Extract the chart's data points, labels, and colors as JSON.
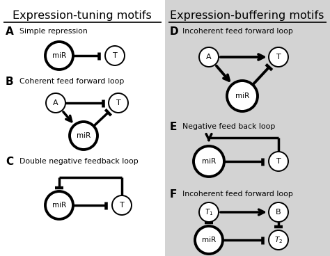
{
  "title_left": "Expression-tuning motifs",
  "title_right": "Expression-buffering motifs",
  "bg_right": "#d3d3d3",
  "panels": {
    "A": {
      "label": "A",
      "desc": "Simple repression"
    },
    "B": {
      "label": "B",
      "desc": "Coherent feed forward loop"
    },
    "C": {
      "label": "C",
      "desc": "Double negative feedback loop"
    },
    "D": {
      "label": "D",
      "desc": "Incoherent feed forward loop"
    },
    "E": {
      "label": "E",
      "desc": "Negative feed back loop"
    },
    "F": {
      "label": "F",
      "desc": "Incoherent feed forward loop"
    }
  }
}
